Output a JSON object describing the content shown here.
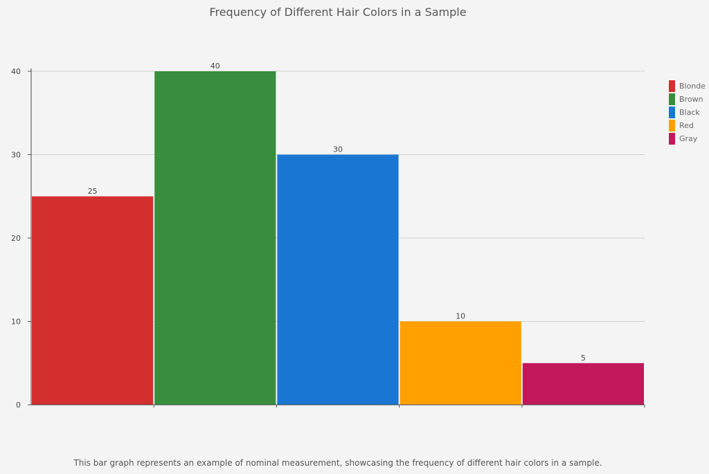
{
  "title": "Frequency of Different Hair Colors in a Sample",
  "caption": "This bar graph represents an example of nominal measurement, showcasing the frequency of different hair colors in a sample.",
  "chart_data": {
    "type": "bar",
    "title": "Frequency of Different Hair Colors in a Sample",
    "categories": [
      "Blonde",
      "Brown",
      "Black",
      "Red",
      "Gray"
    ],
    "values": [
      25,
      40,
      30,
      10,
      5
    ],
    "colors": [
      "#d32f2f",
      "#388e3c",
      "#1976d2",
      "#ffa000",
      "#c2185b"
    ],
    "xlabel": "",
    "ylabel": "",
    "ylim": [
      0,
      40
    ],
    "yticks": [
      0,
      10,
      20,
      30,
      40
    ],
    "grid": true,
    "legend_position": "right",
    "data_labels": true
  }
}
